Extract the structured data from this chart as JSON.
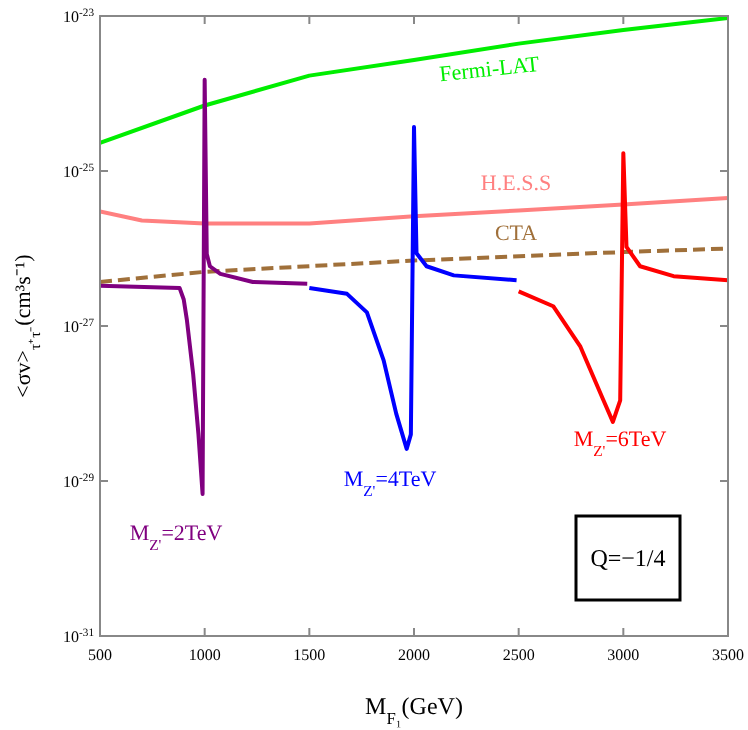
{
  "chart_data": {
    "type": "line",
    "xlabel": "M$_{F₁}$(GeV)",
    "ylabel": "<σv>$_{τ⁺τ⁻}$(cm³s⁻¹)",
    "log": "y",
    "grid": false,
    "marker": "none",
    "xlim": [
      500,
      3500
    ],
    "xticks": [
      500,
      1000,
      1500,
      2000,
      2500,
      3000,
      3500
    ],
    "ylim": [
      1e-31,
      1e-23
    ],
    "yticks": [
      {
        "value": 1e-31,
        "label": "10$^{-31}$"
      },
      {
        "value": 1e-29,
        "label": "10$^{-29}$"
      },
      {
        "value": 1e-27,
        "label": "10$^{-27}$"
      },
      {
        "value": 1e-25,
        "label": "10$^{-25}$"
      },
      {
        "value": 1e-23,
        "label": "10$^{-23}$"
      }
    ],
    "annotations": [
      "Q=−1/4"
    ],
    "series": [
      {
        "name": "Fermi-LAT",
        "color": "#00ee00",
        "x": [
          500,
          1000,
          1500,
          2000,
          2500,
          3000,
          3500
        ],
        "values": [
          2.3e-25,
          7e-25,
          1.7e-24,
          2.7e-24,
          4.4e-24,
          6.6e-24,
          9.4e-24
        ]
      },
      {
        "name": "H.E.S.S",
        "color": "#ff8080",
        "x": [
          500,
          700,
          1000,
          1500,
          2000,
          2500,
          3000,
          3500
        ],
        "values": [
          3e-26,
          2.3e-26,
          2.1e-26,
          2.1e-26,
          2.6e-26,
          3.1e-26,
          3.7e-26,
          4.5e-26
        ]
      },
      {
        "name": "CTA",
        "color": "#a0703a",
        "line_style": "dashed",
        "x": [
          500,
          1000,
          2000,
          3000,
          3500
        ],
        "values": [
          3.7e-27,
          5e-27,
          7e-27,
          9e-27,
          1e-26
        ]
      },
      {
        "name": "M$_{Z'}$=2TeV",
        "color": "#800080",
        "x": [
          500,
          880,
          900,
          915,
          945,
          970,
          990,
          1000,
          1010,
          1025,
          1075,
          1230,
          1490
        ],
        "values": [
          3.3e-27,
          3.1e-27,
          2.2e-27,
          1.2e-27,
          2.4e-28,
          4.1e-29,
          6.8e-30,
          1.5e-24,
          8.5e-27,
          5.9e-27,
          4.7e-27,
          3.7e-27,
          3.5e-27
        ]
      },
      {
        "name": "M$_{Z'}$=4TeV",
        "color": "#0000ff",
        "x": [
          1500,
          1680,
          1775,
          1855,
          1915,
          1965,
          1985,
          2000,
          2012,
          2060,
          2190,
          2490
        ],
        "values": [
          3.1e-27,
          2.6e-27,
          1.5e-27,
          3.6e-28,
          7.4e-29,
          2.6e-29,
          4e-29,
          3.7e-25,
          8.7e-27,
          5.9e-27,
          4.5e-27,
          3.9e-27
        ]
      },
      {
        "name": "M$_{Z'}$=6TeV",
        "color": "#ff0000",
        "x": [
          2500,
          2665,
          2795,
          2905,
          2950,
          2985,
          3000,
          3015,
          3080,
          3240,
          3500
        ],
        "values": [
          2.8e-27,
          1.8e-27,
          5.4e-28,
          1.1e-28,
          5.8e-29,
          1.1e-28,
          1.7e-25,
          1.05e-26,
          5.9e-27,
          4.4e-27,
          3.9e-27
        ]
      }
    ]
  }
}
